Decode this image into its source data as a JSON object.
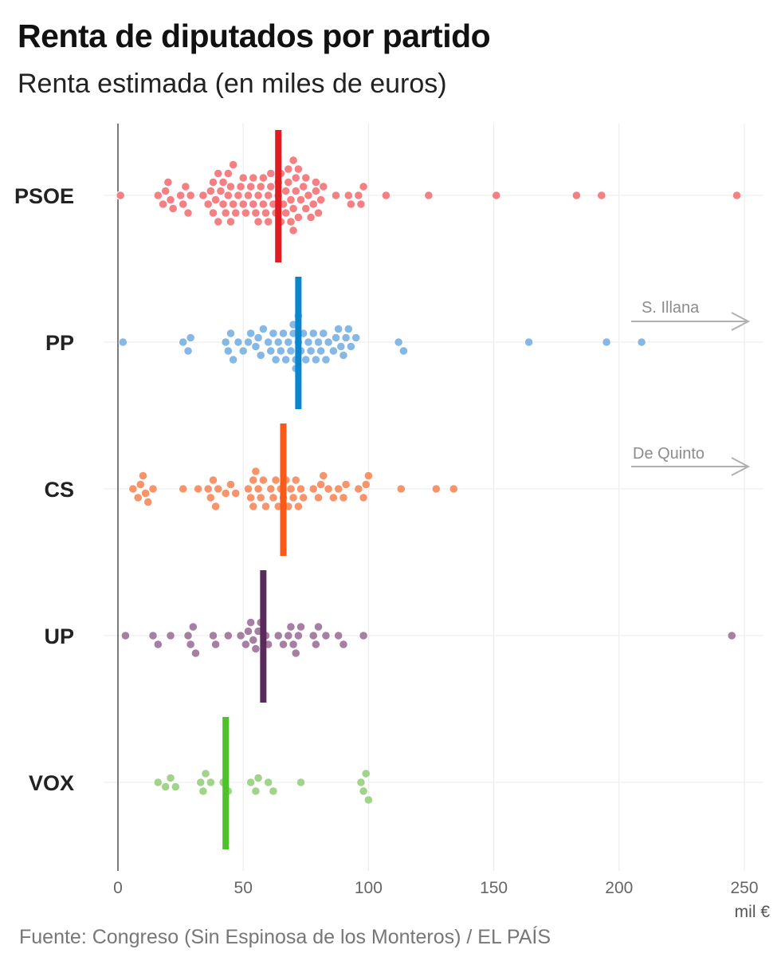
{
  "title": "Renta de diputados por partido",
  "subtitle": "Renta estimada (en miles de euros)",
  "source": "Fuente: Congreso (Sin Espinosa de los Monteros) / EL PAÍS",
  "chart_data": {
    "type": "scatter",
    "subtype": "beeswarm",
    "title": "Renta de diputados por partido",
    "subtitle": "Renta estimada (en miles de euros)",
    "xlabel": "mil €",
    "xlim": [
      0,
      250
    ],
    "xticks": [
      0,
      50,
      100,
      150,
      200,
      250
    ],
    "tick_labels": [
      "0",
      "50",
      "100",
      "150",
      "200",
      "250"
    ],
    "grid": true,
    "median_marker": "vertical bar",
    "categories": [
      "PSOE",
      "PP",
      "CS",
      "UP",
      "VOX"
    ],
    "series": [
      {
        "name": "PSOE",
        "color": "#f58083",
        "median_color": "#e11b22",
        "median": 64,
        "values": [
          1,
          16,
          18,
          19,
          20,
          21,
          22,
          25,
          26,
          27,
          28,
          29,
          34,
          36,
          37,
          38,
          38,
          39,
          40,
          40,
          41,
          42,
          42,
          43,
          44,
          44,
          45,
          45,
          46,
          46,
          47,
          48,
          49,
          50,
          50,
          51,
          52,
          53,
          54,
          54,
          55,
          56,
          56,
          57,
          58,
          58,
          59,
          60,
          60,
          61,
          61,
          62,
          63,
          64,
          64,
          65,
          65,
          66,
          67,
          67,
          68,
          68,
          69,
          69,
          70,
          70,
          70,
          71,
          71,
          72,
          72,
          73,
          74,
          75,
          75,
          76,
          77,
          78,
          79,
          79,
          80,
          81,
          82,
          87,
          92,
          93,
          96,
          97,
          98,
          107,
          124,
          151,
          183,
          193,
          247
        ]
      },
      {
        "name": "PP",
        "color": "#86b8e5",
        "median_color": "#0a86ce",
        "median": 72,
        "values": [
          2,
          26,
          28,
          29,
          43,
          44,
          45,
          46,
          48,
          50,
          52,
          53,
          55,
          56,
          57,
          58,
          60,
          61,
          62,
          63,
          64,
          65,
          66,
          67,
          68,
          69,
          70,
          70,
          71,
          71,
          72,
          72,
          73,
          74,
          75,
          76,
          77,
          78,
          79,
          80,
          81,
          82,
          83,
          84,
          86,
          87,
          88,
          89,
          90,
          91,
          92,
          93,
          95,
          112,
          114,
          164,
          195,
          209
        ]
      },
      {
        "name": "CS",
        "color": "#f9936a",
        "median_color": "#fa5a17",
        "median": 66,
        "values": [
          6,
          8,
          9,
          10,
          11,
          12,
          14,
          26,
          32,
          36,
          37,
          38,
          39,
          40,
          43,
          45,
          47,
          52,
          53,
          54,
          54,
          55,
          56,
          57,
          58,
          59,
          61,
          62,
          63,
          64,
          65,
          66,
          67,
          68,
          69,
          70,
          71,
          72,
          73,
          74,
          78,
          80,
          81,
          82,
          84,
          86,
          88,
          90,
          91,
          96,
          98,
          99,
          100,
          113,
          127,
          134
        ]
      },
      {
        "name": "UP",
        "color": "#a77fa4",
        "median_color": "#5a2a5c",
        "median": 58,
        "values": [
          3,
          14,
          16,
          21,
          28,
          29,
          30,
          31,
          38,
          39,
          44,
          49,
          51,
          52,
          53,
          54,
          55,
          56,
          57,
          59,
          60,
          64,
          66,
          68,
          69,
          70,
          71,
          72,
          73,
          78,
          79,
          80,
          83,
          88,
          90,
          98,
          245
        ]
      },
      {
        "name": "VOX",
        "color": "#a1d48a",
        "median_color": "#4ec22a",
        "median": 43,
        "values": [
          16,
          19,
          21,
          23,
          33,
          34,
          35,
          37,
          42,
          44,
          53,
          55,
          56,
          60,
          62,
          73,
          97,
          98,
          99,
          100
        ]
      }
    ],
    "annotations": [
      {
        "label": "S. Illana",
        "series": "PP",
        "direction": "right",
        "note": "value off chart"
      },
      {
        "label": "De Quinto",
        "series": "CS",
        "direction": "right",
        "note": "value off chart"
      }
    ]
  }
}
